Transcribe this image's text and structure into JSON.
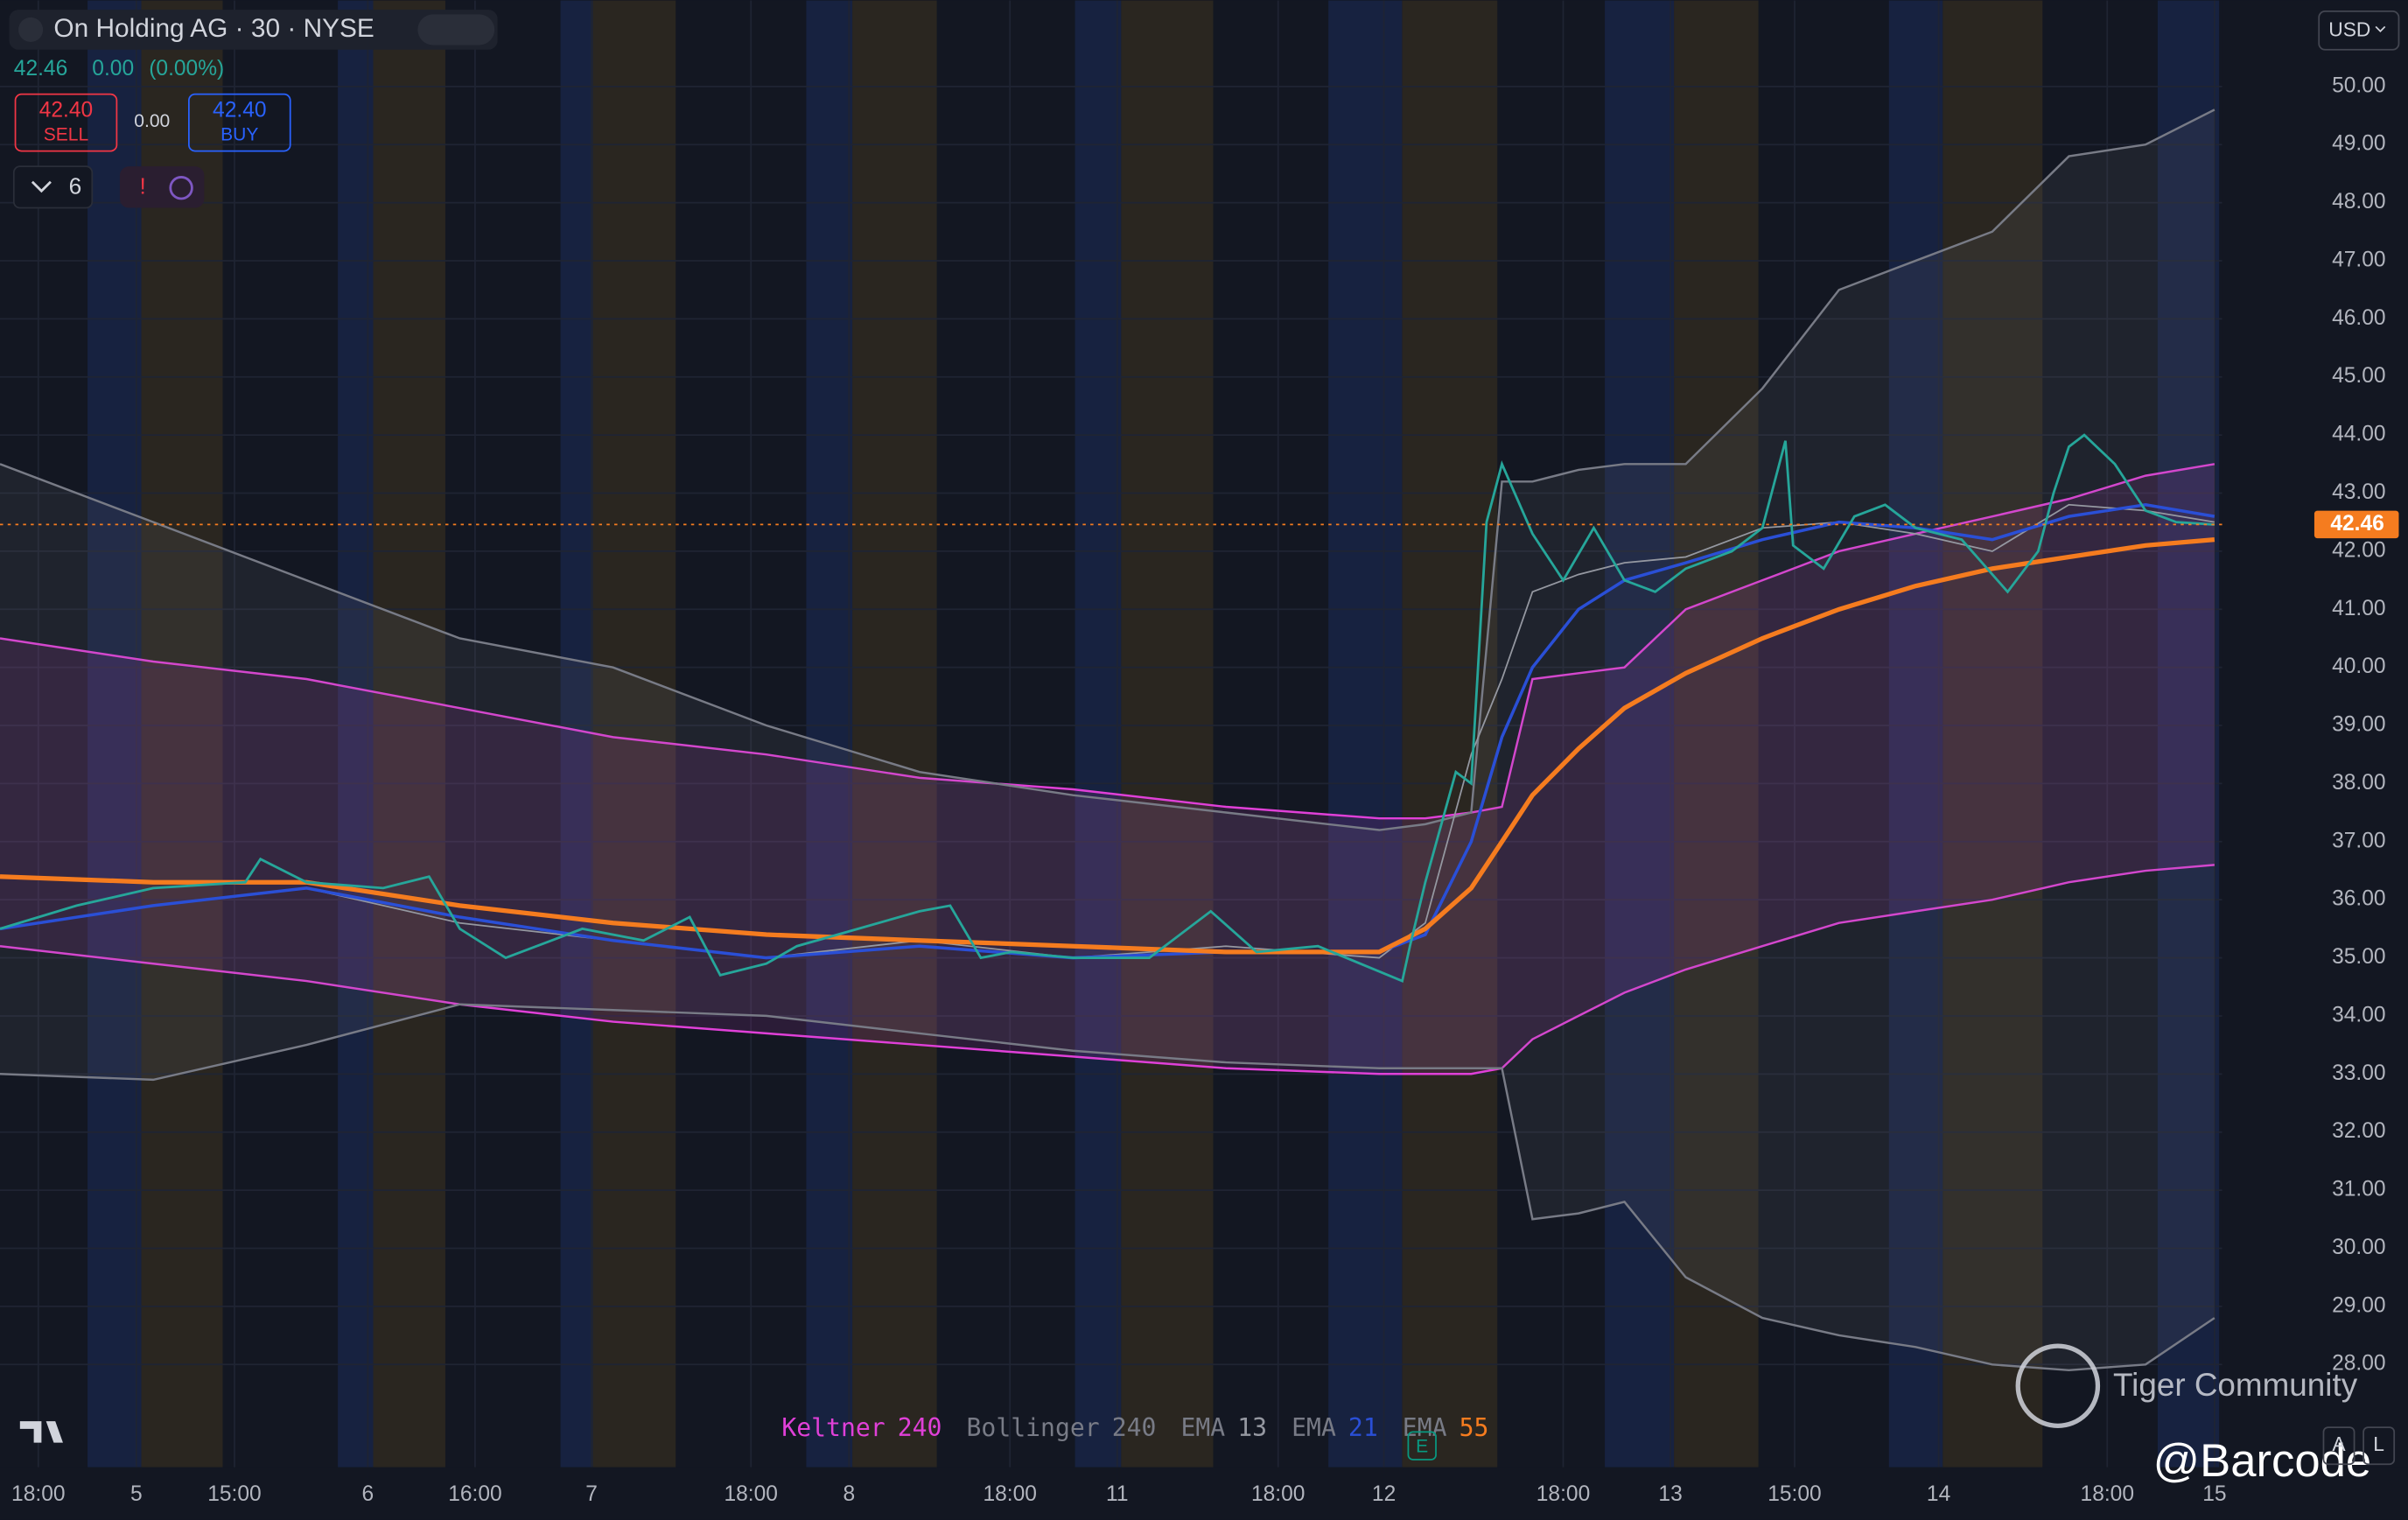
{
  "header": {
    "symbol": "On Holding AG · 30 · NYSE",
    "change": "0.00",
    "change_pct": "(0.00%)",
    "sell_price": "42.40",
    "sell_label": "SELL",
    "spread": "0.00",
    "buy_price": "42.40",
    "buy_label": "BUY",
    "indicator_count": "6",
    "currency": "USD"
  },
  "chart_data": {
    "type": "line",
    "last_price": 42.46,
    "xlim": [
      0,
      145
    ],
    "ylim": [
      26.23,
      51.48
    ],
    "xticks": [
      {
        "value": 2.5,
        "label": "18:00"
      },
      {
        "value": 8.9,
        "label": "5"
      },
      {
        "value": 15.3,
        "label": "15:00"
      },
      {
        "value": 24,
        "label": "6"
      },
      {
        "value": 31,
        "label": "16:00"
      },
      {
        "value": 38.6,
        "label": "7"
      },
      {
        "value": 49,
        "label": "18:00"
      },
      {
        "value": 55.4,
        "label": "8"
      },
      {
        "value": 65.9,
        "label": "18:00"
      },
      {
        "value": 72.9,
        "label": "11"
      },
      {
        "value": 83.4,
        "label": "18:00"
      },
      {
        "value": 90.3,
        "label": "12"
      },
      {
        "value": 102,
        "label": "18:00"
      },
      {
        "value": 109,
        "label": "13"
      },
      {
        "value": 117.1,
        "label": "15:00"
      },
      {
        "value": 126.5,
        "label": "14"
      },
      {
        "value": 137.5,
        "label": "18:00"
      },
      {
        "value": 144.5,
        "label": "15"
      }
    ],
    "yticks": [
      {
        "value": 28,
        "label": "28.00"
      },
      {
        "value": 29,
        "label": "29.00"
      },
      {
        "value": 30,
        "label": "30.00"
      },
      {
        "value": 31,
        "label": "31.00"
      },
      {
        "value": 32,
        "label": "32.00"
      },
      {
        "value": 33,
        "label": "33.00"
      },
      {
        "value": 34,
        "label": "34.00"
      },
      {
        "value": 35,
        "label": "35.00"
      },
      {
        "value": 36,
        "label": "36.00"
      },
      {
        "value": 37,
        "label": "37.00"
      },
      {
        "value": 38,
        "label": "38.00"
      },
      {
        "value": 39,
        "label": "39.00"
      },
      {
        "value": 40,
        "label": "40.00"
      },
      {
        "value": 41,
        "label": "41.00"
      },
      {
        "value": 42,
        "label": "42.00"
      },
      {
        "value": 43,
        "label": "43.00"
      },
      {
        "value": 44,
        "label": "44.00"
      },
      {
        "value": 45,
        "label": "45.00"
      },
      {
        "value": 46,
        "label": "46.00"
      },
      {
        "value": 47,
        "label": "47.00"
      },
      {
        "value": 48,
        "label": "48.00"
      },
      {
        "value": 49,
        "label": "49.00"
      },
      {
        "value": 50,
        "label": "50.00"
      }
    ],
    "grid": true,
    "price": {
      "color": "#26a69a",
      "x": [
        0,
        5,
        10,
        16,
        17,
        20,
        25,
        28,
        30,
        33,
        38,
        42,
        45,
        47,
        50,
        52,
        56,
        60,
        62,
        64,
        66,
        70,
        75,
        79,
        82,
        86,
        91.5,
        92,
        93,
        95,
        96,
        97,
        98,
        100,
        102,
        104,
        106,
        108,
        110,
        113,
        115,
        116.5,
        117,
        119,
        121,
        123,
        125,
        128,
        131,
        133,
        134,
        135,
        136,
        138,
        140,
        142,
        144.5
      ],
      "values": [
        35.5,
        35.9,
        36.2,
        36.3,
        36.7,
        36.3,
        36.2,
        36.4,
        35.5,
        35.0,
        35.5,
        35.3,
        35.7,
        34.7,
        34.9,
        35.2,
        35.5,
        35.8,
        35.9,
        35.0,
        35.1,
        35.0,
        35.0,
        35.8,
        35.1,
        35.2,
        34.6,
        35.2,
        36.3,
        38.2,
        38.0,
        42.5,
        43.5,
        42.3,
        41.5,
        42.4,
        41.5,
        41.3,
        41.7,
        42.0,
        42.4,
        43.9,
        42.1,
        41.7,
        42.6,
        42.8,
        42.4,
        42.2,
        41.3,
        42.0,
        43.0,
        43.8,
        44.0,
        43.5,
        42.7,
        42.5,
        42.46
      ]
    },
    "x": [
      0,
      10,
      20,
      30,
      40,
      50,
      60,
      70,
      80,
      90,
      93,
      96,
      98,
      100,
      103,
      106,
      110,
      115,
      120,
      125,
      130,
      135,
      140,
      144.5
    ],
    "series": [
      {
        "name": "Keltner",
        "length": 240,
        "color": "#e040d8",
        "upper": [
          40.5,
          40.1,
          39.8,
          39.3,
          38.8,
          38.5,
          38.1,
          37.9,
          37.6,
          37.4,
          37.4,
          37.5,
          37.6,
          39.8,
          39.9,
          40.0,
          41.0,
          41.5,
          42.0,
          42.3,
          42.6,
          42.9,
          43.3,
          43.5
        ],
        "lower": [
          35.2,
          34.9,
          34.6,
          34.2,
          33.9,
          33.7,
          33.5,
          33.3,
          33.1,
          33.0,
          33.0,
          33.0,
          33.1,
          33.6,
          34.0,
          34.4,
          34.8,
          35.2,
          35.6,
          35.8,
          36.0,
          36.3,
          36.5,
          36.6
        ]
      },
      {
        "name": "Bollinger",
        "length": 240,
        "color": "#787b86",
        "upper": [
          43.5,
          42.5,
          41.5,
          40.5,
          40.0,
          39.0,
          38.2,
          37.8,
          37.5,
          37.2,
          37.3,
          37.5,
          43.2,
          43.2,
          43.4,
          43.5,
          43.5,
          44.8,
          46.5,
          47.0,
          47.5,
          48.8,
          49.0,
          49.6
        ],
        "lower": [
          33.0,
          32.9,
          33.5,
          34.2,
          34.1,
          34.0,
          33.7,
          33.4,
          33.2,
          33.1,
          33.1,
          33.1,
          33.1,
          30.5,
          30.6,
          30.8,
          29.5,
          28.8,
          28.5,
          28.3,
          28.0,
          27.9,
          28.0,
          28.8
        ]
      },
      {
        "name": "EMA",
        "length": 13,
        "color": "#9598a1",
        "values": [
          35.5,
          35.9,
          36.2,
          35.6,
          35.3,
          35.0,
          35.3,
          35.0,
          35.2,
          35.0,
          35.6,
          38.5,
          39.8,
          41.3,
          41.6,
          41.8,
          41.9,
          42.4,
          42.5,
          42.3,
          42.0,
          42.8,
          42.7,
          42.5
        ]
      },
      {
        "name": "EMA",
        "length": 21,
        "color": "#2a4fd6",
        "values": [
          35.5,
          35.9,
          36.2,
          35.7,
          35.3,
          35.0,
          35.2,
          35.0,
          35.1,
          35.1,
          35.4,
          37.0,
          38.8,
          40.0,
          41.0,
          41.5,
          41.8,
          42.2,
          42.5,
          42.4,
          42.2,
          42.6,
          42.8,
          42.6
        ]
      },
      {
        "name": "EMA",
        "length": 55,
        "color": "#f57c1f",
        "values": [
          36.4,
          36.3,
          36.3,
          35.9,
          35.6,
          35.4,
          35.3,
          35.2,
          35.1,
          35.1,
          35.5,
          36.2,
          37.0,
          37.8,
          38.6,
          39.3,
          39.9,
          40.5,
          41.0,
          41.4,
          41.7,
          41.9,
          42.1,
          42.2
        ]
      }
    ]
  },
  "watermark": {
    "brand": "Tiger Community",
    "handle": "@Barcode"
  },
  "toolbar": {
    "auto": "A",
    "log": "L",
    "earnings": "E"
  }
}
